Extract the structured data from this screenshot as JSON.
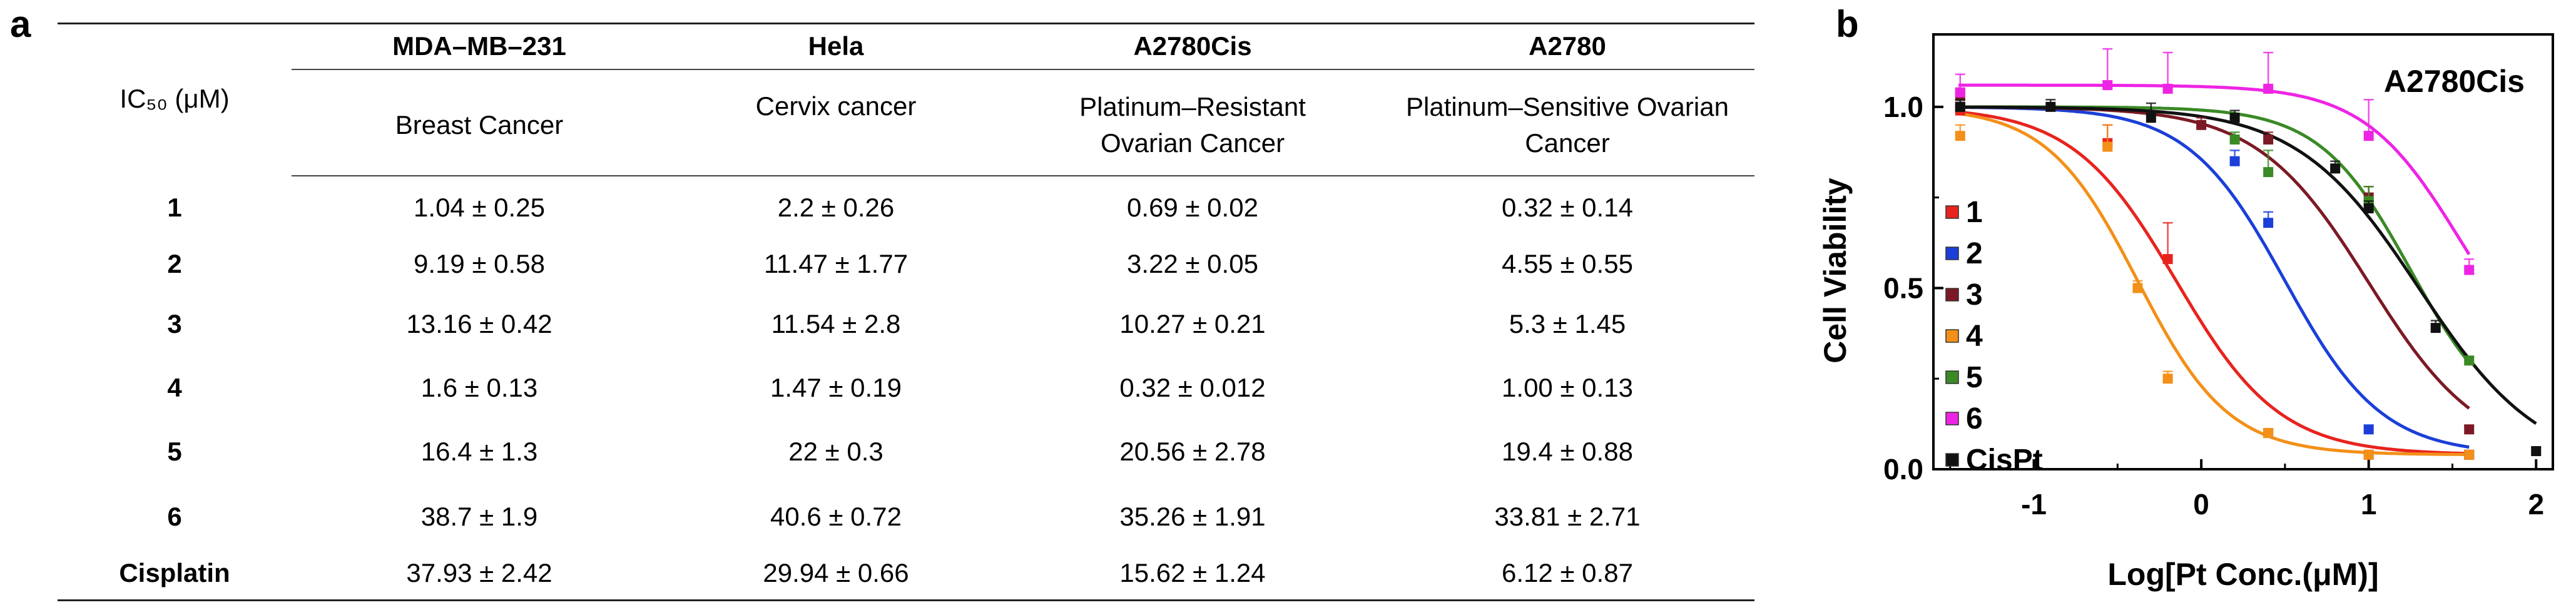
{
  "panel_labels": {
    "a": "a",
    "b": "b"
  },
  "table": {
    "corner_header": "IC₅₀ (μM)",
    "columns": [
      {
        "cell_line": "MDA–MB–231",
        "cancer_type": "Breast Cancer"
      },
      {
        "cell_line": "Hela",
        "cancer_type": "Cervix cancer"
      },
      {
        "cell_line": "A2780Cis",
        "cancer_type": "Platinum–Resistant Ovarian Cancer"
      },
      {
        "cell_line": "A2780",
        "cancer_type": "Platinum–Sensitive Ovarian Cancer"
      }
    ],
    "rows": [
      {
        "compound": "1",
        "values": [
          "1.04 ± 0.25",
          "2.2 ± 0.26",
          "0.69 ± 0.02",
          "0.32 ± 0.14"
        ]
      },
      {
        "compound": "2",
        "values": [
          "9.19 ± 0.58",
          "11.47 ± 1.77",
          "3.22 ± 0.05",
          "4.55 ± 0.55"
        ]
      },
      {
        "compound": "3",
        "values": [
          "13.16 ± 0.42",
          "11.54 ± 2.8",
          "10.27 ± 0.21",
          "5.3 ± 1.45"
        ]
      },
      {
        "compound": "4",
        "values": [
          "1.6 ± 0.13",
          "1.47 ± 0.19",
          "0.32 ± 0.012",
          "1.00 ± 0.13"
        ]
      },
      {
        "compound": "5",
        "values": [
          "16.4 ± 1.3",
          "22 ± 0.3",
          "20.56 ± 2.78",
          "19.4 ± 0.88"
        ]
      },
      {
        "compound": "6",
        "values": [
          "38.7 ± 1.9",
          "40.6 ± 0.72",
          "35.26 ± 1.91",
          "33.81 ± 2.71"
        ]
      },
      {
        "compound": "Cisplatin",
        "values": [
          "37.93 ± 2.42",
          "29.94 ± 0.66",
          "15.62 ± 1.24",
          "6.12 ± 0.87"
        ]
      }
    ]
  },
  "chart_data": {
    "type": "scatter",
    "title": "A2780Cis",
    "xlabel": "Log[Pt Conc.(μM)]",
    "ylabel": "Cell Viability",
    "xlim": [
      -1.6,
      2.1
    ],
    "ylim": [
      0,
      1.2
    ],
    "x_ticks": [
      -1,
      0,
      1,
      2
    ],
    "x_tick_labels": [
      "-1",
      "0",
      "1",
      "2"
    ],
    "y_ticks": [
      0,
      0.5,
      1
    ],
    "y_tick_labels": [
      "0.0",
      "0.5",
      "1.0"
    ],
    "grid": false,
    "legend_position": "left",
    "series": [
      {
        "name": "1",
        "color": "#e8231e",
        "x": [
          -1.44,
          -0.56,
          -0.2,
          0.4,
          1.0,
          1.6
        ],
        "y": [
          0.99,
          0.9,
          0.58,
          0.1,
          0.04,
          0.04
        ],
        "err": [
          0.02,
          0.05,
          0.1,
          0.01,
          0.01,
          0.01
        ],
        "curve": {
          "top": 1.0,
          "bottom": 0.04,
          "log_ic50": -0.15,
          "hill": 1.4
        }
      },
      {
        "name": "2",
        "color": "#1b3fd8",
        "x": [
          -1.44,
          0.2,
          0.4,
          1.0,
          1.6
        ],
        "y": [
          1.0,
          0.85,
          0.68,
          0.11,
          0.04
        ],
        "err": [
          0.02,
          0.03,
          0.03,
          0.01,
          0.01
        ],
        "curve": {
          "top": 1.0,
          "bottom": 0.04,
          "log_ic50": 0.5,
          "hill": 1.5
        }
      },
      {
        "name": "3",
        "color": "#7b1a24",
        "x": [
          -1.44,
          0.0,
          0.4,
          1.0,
          1.6
        ],
        "y": [
          1.03,
          0.95,
          0.91,
          0.75,
          0.11
        ],
        "err": [
          0.02,
          0.02,
          0.02,
          0.03,
          0.01
        ],
        "curve": {
          "top": 1.0,
          "bottom": 0.03,
          "log_ic50": 1.0,
          "hill": 1.3
        }
      },
      {
        "name": "4",
        "color": "#f39019",
        "x": [
          -1.44,
          -0.56,
          -0.38,
          -0.2,
          0.4,
          1.0,
          1.6
        ],
        "y": [
          0.92,
          0.89,
          0.5,
          0.25,
          0.1,
          0.04,
          0.04
        ],
        "err": [
          0.03,
          0.06,
          0.02,
          0.02,
          0.01,
          0.01,
          0.01
        ],
        "curve": {
          "top": 1.0,
          "bottom": 0.04,
          "log_ic50": -0.38,
          "hill": 1.6
        }
      },
      {
        "name": "5",
        "color": "#3a8a26",
        "x": [
          -1.44,
          0.2,
          0.4,
          1.0,
          1.6
        ],
        "y": [
          1.0,
          0.91,
          0.82,
          0.74,
          0.3
        ],
        "err": [
          0.02,
          0.02,
          0.06,
          0.04,
          0.01
        ],
        "curve": {
          "top": 1.0,
          "bottom": 0.1,
          "log_ic50": 1.25,
          "hill": 1.6
        }
      },
      {
        "name": "6",
        "color": "#ee24e4",
        "x": [
          -1.44,
          -0.56,
          -0.2,
          0.4,
          1.0,
          1.6
        ],
        "y": [
          1.04,
          1.06,
          1.05,
          1.05,
          0.92,
          0.55
        ],
        "err": [
          0.05,
          0.1,
          0.1,
          0.1,
          0.1,
          0.03
        ],
        "curve": {
          "top": 1.06,
          "bottom": 0.2,
          "log_ic50": 1.55,
          "hill": 1.5
        }
      },
      {
        "name": "CisPt",
        "color": "#111111",
        "x": [
          -1.44,
          -0.9,
          -0.3,
          0.2,
          0.8,
          1.0,
          1.4,
          2.0
        ],
        "y": [
          1.0,
          1.0,
          0.97,
          0.97,
          0.83,
          0.72,
          0.39,
          0.05
        ],
        "err": [
          0.02,
          0.02,
          0.04,
          0.02,
          0.02,
          0.02,
          0.02,
          0.01
        ],
        "curve": {
          "top": 1.0,
          "bottom": 0.0,
          "log_ic50": 1.3,
          "hill": 1.2
        }
      }
    ]
  }
}
